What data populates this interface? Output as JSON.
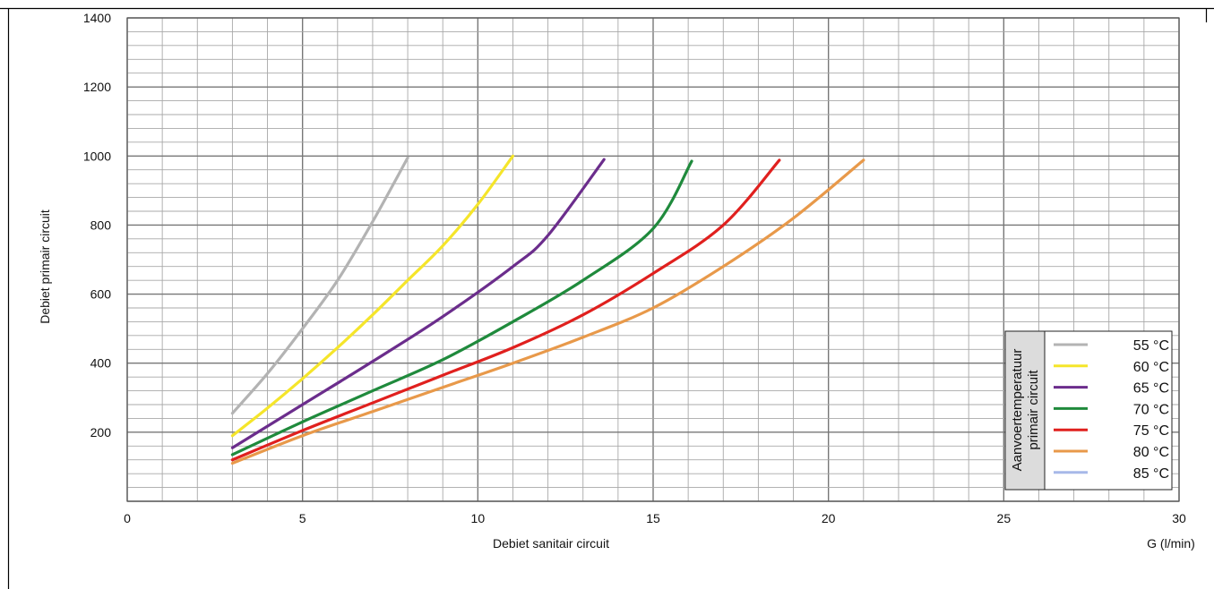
{
  "chart_data": {
    "type": "line",
    "xlabel": "Debiet sanitair circuit",
    "xunit": "G (l/min)",
    "ylabel": "Debiet primair circuit",
    "xlim": [
      0,
      30
    ],
    "ylim": [
      0,
      1400
    ],
    "x_ticks": [
      "0",
      "5",
      "10",
      "15",
      "20",
      "25",
      "30"
    ],
    "y_ticks": [
      "200",
      "400",
      "600",
      "800",
      "1000",
      "1200",
      "1400"
    ],
    "grid": true,
    "legend_title": "Aanvoertemperatuur primair circuit",
    "legend_title_lines": [
      "Aanvoertemperatuur",
      "primair circuit"
    ],
    "legend_position": "bottom-right",
    "series": [
      {
        "name": "55 °C",
        "color": "#b3b3b3",
        "x": [
          3,
          4,
          5,
          6,
          7,
          8
        ],
        "y": [
          255,
          370,
          500,
          640,
          810,
          995
        ]
      },
      {
        "name": "60 °C",
        "color": "#f5e52a",
        "x": [
          3,
          4,
          5,
          6,
          7,
          8,
          9,
          10,
          11
        ],
        "y": [
          190,
          270,
          355,
          445,
          540,
          640,
          740,
          860,
          1000
        ]
      },
      {
        "name": "65 °C",
        "color": "#6b2d8c",
        "x": [
          3,
          5,
          7,
          9,
          11,
          12,
          13.6
        ],
        "y": [
          155,
          280,
          405,
          535,
          680,
          770,
          990
        ]
      },
      {
        "name": "70 °C",
        "color": "#1f8a3c",
        "x": [
          3,
          5,
          7,
          9,
          11,
          13,
          15,
          16.1
        ],
        "y": [
          135,
          230,
          320,
          410,
          520,
          640,
          790,
          985
        ]
      },
      {
        "name": "75 °C",
        "color": "#e0201e",
        "x": [
          3,
          5,
          7,
          9,
          11,
          13,
          15,
          17,
          18.6
        ],
        "y": [
          120,
          205,
          285,
          365,
          445,
          540,
          660,
          800,
          988
        ]
      },
      {
        "name": "80 °C",
        "color": "#e8994a",
        "x": [
          3,
          5,
          7,
          9,
          11,
          13,
          15,
          17,
          19,
          21
        ],
        "y": [
          110,
          190,
          260,
          330,
          400,
          475,
          560,
          680,
          820,
          988
        ]
      },
      {
        "name": "85 °C",
        "color": "#a7b8e8",
        "x": [],
        "y": []
      }
    ]
  }
}
